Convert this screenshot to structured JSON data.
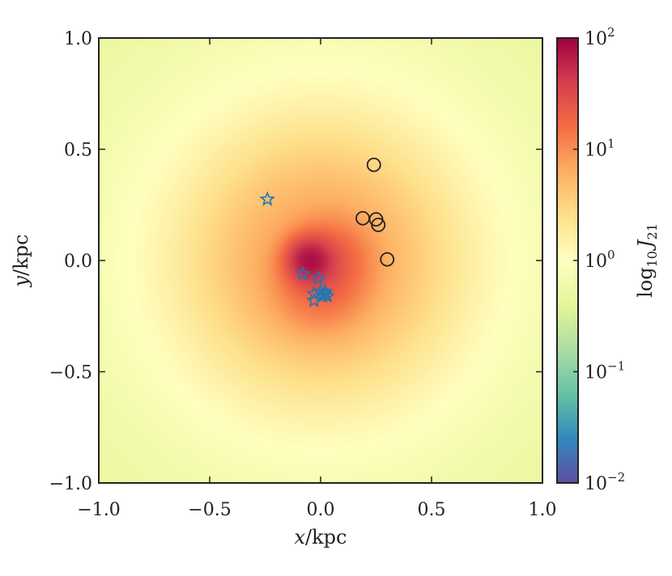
{
  "chart_data": {
    "type": "heatmap",
    "xlabel": {
      "var": "x",
      "unit": "/kpc"
    },
    "ylabel": {
      "var": "y",
      "unit": "/kpc"
    },
    "xlim": [
      -1.0,
      1.0
    ],
    "ylim": [
      -1.0,
      1.0
    ],
    "x_ticks": [
      {
        "value": -1.0,
        "label": "−1.0"
      },
      {
        "value": -0.5,
        "label": "−0.5"
      },
      {
        "value": 0.0,
        "label": "0.0"
      },
      {
        "value": 0.5,
        "label": "0.5"
      },
      {
        "value": 1.0,
        "label": "1.0"
      }
    ],
    "y_ticks": [
      {
        "value": -1.0,
        "label": "−1.0"
      },
      {
        "value": -0.5,
        "label": "−0.5"
      },
      {
        "value": 0.0,
        "label": "0.0"
      },
      {
        "value": 0.5,
        "label": "0.5"
      },
      {
        "value": 1.0,
        "label": "1.0"
      }
    ],
    "colorbar": {
      "label": {
        "prefix": "log",
        "sub": "10",
        "var": "J",
        "var_sub": "21"
      },
      "scale": "log",
      "range": [
        0.01,
        100
      ],
      "ticks": [
        {
          "value": 0.01,
          "base": "10",
          "exp": "−2"
        },
        {
          "value": 0.1,
          "base": "10",
          "exp": "−1"
        },
        {
          "value": 1,
          "base": "10",
          "exp": "0"
        },
        {
          "value": 10,
          "base": "10",
          "exp": "1"
        },
        {
          "value": 100,
          "base": "10",
          "exp": "2"
        }
      ],
      "colormap": [
        "#5e4fa2",
        "#3288bd",
        "#66c2a5",
        "#abdda4",
        "#e6f598",
        "#ffffbf",
        "#fee08b",
        "#fdae61",
        "#f46d43",
        "#d53e4f",
        "#9e0142"
      ]
    },
    "field": {
      "background_value": 0.45,
      "components": [
        {
          "x": -0.05,
          "y": 0.0,
          "amp": 60,
          "sigma": 0.06
        },
        {
          "x": 0.05,
          "y": 0.02,
          "amp": 10,
          "sigma": 0.1
        },
        {
          "x": 0.0,
          "y": -0.1,
          "amp": 12,
          "sigma": 0.12
        },
        {
          "x": 0.0,
          "y": 0.0,
          "amp": 6,
          "sigma": 0.3
        },
        {
          "x": 0.0,
          "y": 0.0,
          "amp": 1.5,
          "sigma": 0.55
        }
      ]
    },
    "series": [
      {
        "marker": "star",
        "color": "#1f77b4",
        "points": [
          [
            -0.24,
            0.275
          ],
          [
            -0.08,
            -0.06
          ],
          [
            -0.01,
            -0.08
          ],
          [
            -0.03,
            -0.15
          ],
          [
            -0.03,
            -0.18
          ],
          [
            0.0,
            -0.14
          ],
          [
            0.02,
            -0.14
          ],
          [
            0.01,
            -0.16
          ],
          [
            0.03,
            -0.16
          ],
          [
            0.02,
            -0.15
          ]
        ]
      },
      {
        "marker": "circle",
        "color": "#222222",
        "points": [
          [
            0.24,
            0.43
          ],
          [
            0.19,
            0.19
          ],
          [
            0.25,
            0.185
          ],
          [
            0.26,
            0.16
          ],
          [
            0.3,
            0.005
          ]
        ]
      }
    ]
  }
}
